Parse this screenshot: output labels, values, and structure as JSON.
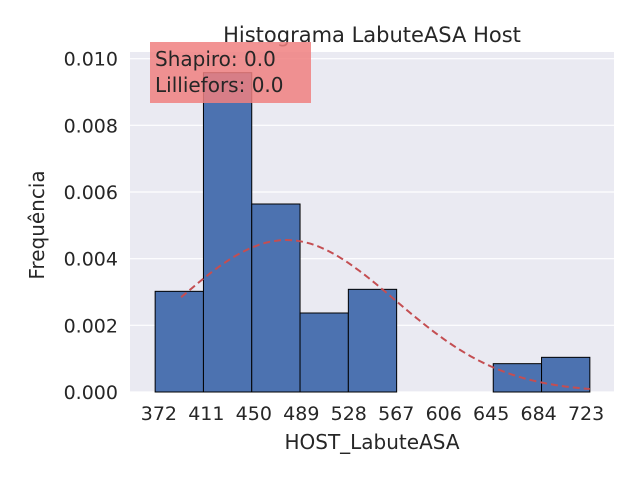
{
  "chart_data": {
    "type": "bar",
    "title": "Histograma LabuteASA Host",
    "xlabel": "HOST_LabuteASA",
    "ylabel": "Frequência",
    "xlim": [
      351.7,
      742.5
    ],
    "ylim": [
      0,
      0.0102
    ],
    "bins": [
      {
        "start": 372,
        "end": 411,
        "density": 0.00302
      },
      {
        "start": 411,
        "end": 450,
        "density": 0.00958
      },
      {
        "start": 450,
        "end": 489,
        "density": 0.00564
      },
      {
        "start": 489,
        "end": 528,
        "density": 0.00237
      },
      {
        "start": 528,
        "end": 567,
        "density": 0.00308
      },
      {
        "start": 567,
        "end": 606,
        "density": 0
      },
      {
        "start": 606,
        "end": 645,
        "density": 0
      },
      {
        "start": 645,
        "end": 684,
        "density": 0.00085
      },
      {
        "start": 684,
        "end": 723,
        "density": 0.00104
      }
    ],
    "normal_fit": {
      "mean": 478,
      "std": 87.5,
      "x_range": [
        393,
        723
      ]
    },
    "x_ticks": [
      "372",
      "411",
      "450",
      "489",
      "528",
      "567",
      "606",
      "645",
      "684",
      "723"
    ],
    "y_ticks": [
      "0.000",
      "0.002",
      "0.004",
      "0.006",
      "0.008",
      "0.010"
    ],
    "y_tick_values": [
      0,
      0.002,
      0.004,
      0.006,
      0.008,
      0.01
    ],
    "grid": true,
    "annotation": {
      "lines": [
        "Shapiro: 0.0",
        "Lilliefors: 0.0"
      ],
      "box_color": "#f08080"
    },
    "colors": {
      "background": "#eaeaf2",
      "bar_fill": "#4c72b0",
      "bar_edge": "#000000",
      "curve": "#c44e52",
      "grid": "#ffffff"
    }
  }
}
